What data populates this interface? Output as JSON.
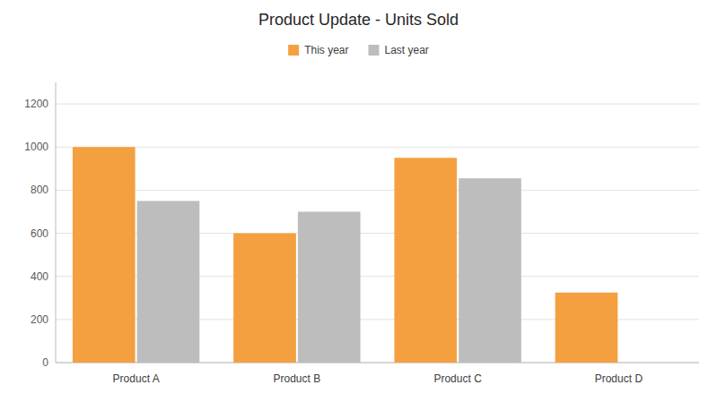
{
  "chart_data": {
    "type": "bar",
    "title": "Product Update - Units Sold",
    "categories": [
      "Product A",
      "Product B",
      "Product C",
      "Product D"
    ],
    "series": [
      {
        "name": "This year",
        "color": "#F4A040",
        "values": [
          1000,
          600,
          950,
          325
        ]
      },
      {
        "name": "Last year",
        "color": "#BDBDBD",
        "values": [
          750,
          700,
          855,
          0
        ]
      }
    ],
    "ylim": [
      0,
      1300
    ],
    "yticks": [
      0,
      200,
      400,
      600,
      800,
      1000,
      1200
    ],
    "grid": true,
    "legend": "top"
  }
}
